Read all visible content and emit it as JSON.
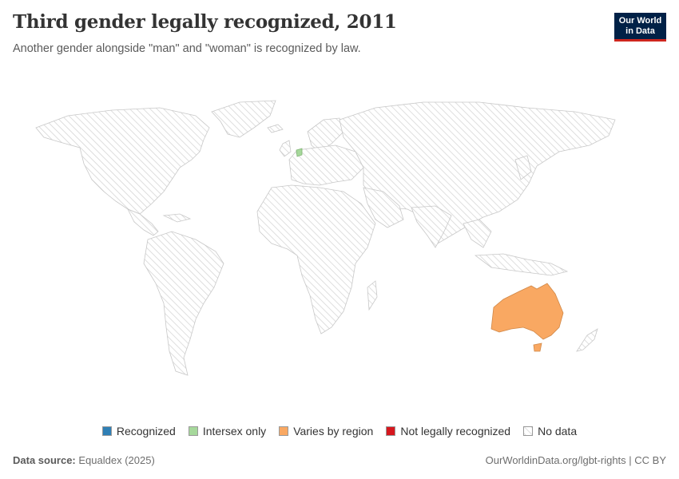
{
  "header": {
    "title": "Third gender legally recognized, 2011",
    "subtitle": "Another gender alongside \"man\" and \"woman\" is recognized by law.",
    "logo_line1": "Our World",
    "logo_line2": "in Data"
  },
  "legend": {
    "items": [
      {
        "label": "Recognized",
        "color": "#2f7fb5"
      },
      {
        "label": "Intersex only",
        "color": "#a6d89b"
      },
      {
        "label": "Varies by region",
        "color": "#f9a862"
      },
      {
        "label": "Not legally recognized",
        "color": "#d6171e"
      },
      {
        "label": "No data",
        "color": "hatched"
      }
    ]
  },
  "map_data": {
    "Australia": "Varies by region",
    "Netherlands": "Intersex only"
  },
  "footer": {
    "source_label": "Data source:",
    "source_value": "Equaldex (2025)",
    "attribution": "OurWorldinData.org/lgbt-rights | CC BY"
  }
}
